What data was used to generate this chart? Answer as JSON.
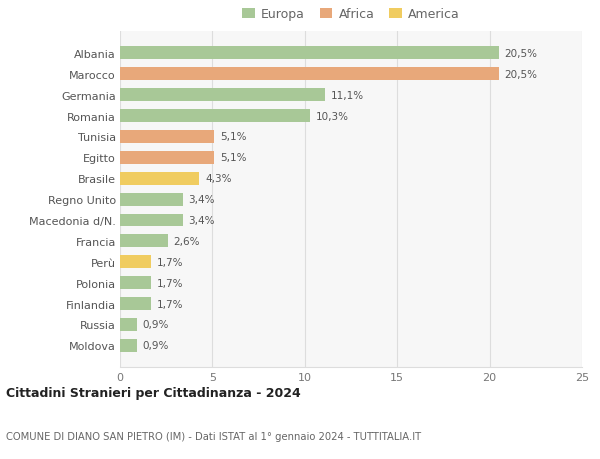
{
  "countries": [
    "Albania",
    "Marocco",
    "Germania",
    "Romania",
    "Tunisia",
    "Egitto",
    "Brasile",
    "Regno Unito",
    "Macedonia d/N.",
    "Francia",
    "Perù",
    "Polonia",
    "Finlandia",
    "Russia",
    "Moldova"
  ],
  "values": [
    20.5,
    20.5,
    11.1,
    10.3,
    5.1,
    5.1,
    4.3,
    3.4,
    3.4,
    2.6,
    1.7,
    1.7,
    1.7,
    0.9,
    0.9
  ],
  "labels": [
    "20,5%",
    "20,5%",
    "11,1%",
    "10,3%",
    "5,1%",
    "5,1%",
    "4,3%",
    "3,4%",
    "3,4%",
    "2,6%",
    "1,7%",
    "1,7%",
    "1,7%",
    "0,9%",
    "0,9%"
  ],
  "continents": [
    "Europa",
    "Africa",
    "Europa",
    "Europa",
    "Africa",
    "Africa",
    "America",
    "Europa",
    "Europa",
    "Europa",
    "America",
    "Europa",
    "Europa",
    "Europa",
    "Europa"
  ],
  "colors": {
    "Europa": "#a8c897",
    "Africa": "#e8a87a",
    "America": "#f0cc60"
  },
  "title1": "Cittadini Stranieri per Cittadinanza - 2024",
  "title2": "COMUNE DI DIANO SAN PIETRO (IM) - Dati ISTAT al 1° gennaio 2024 - TUTTITALIA.IT",
  "xlim": [
    0,
    25
  ],
  "xticks": [
    0,
    5,
    10,
    15,
    20,
    25
  ],
  "background_color": "#ffffff",
  "plot_bg_color": "#f7f7f7",
  "grid_color": "#dddddd"
}
